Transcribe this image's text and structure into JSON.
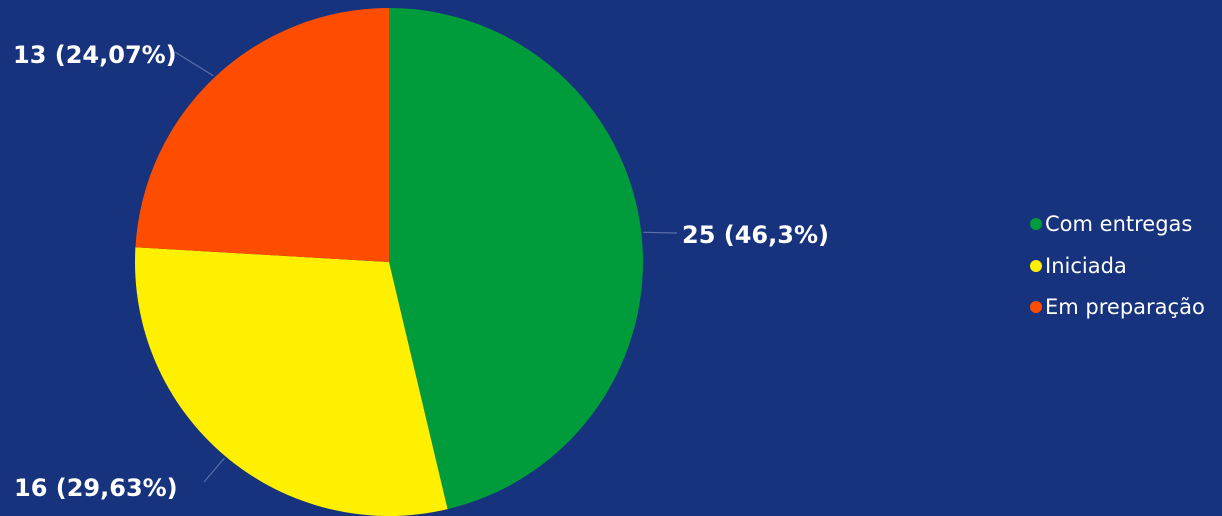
{
  "chart_data": {
    "type": "pie",
    "title": "",
    "legend_position": "right",
    "background_color": "#17337e",
    "slices": [
      {
        "name": "Com entregas",
        "value": 25,
        "percent": 46.3,
        "label": "25 (46,3%)",
        "color": "#009c3b"
      },
      {
        "name": "Iniciada",
        "value": 16,
        "percent": 29.63,
        "label": "16 (29,63%)",
        "color": "#fff000"
      },
      {
        "name": "Em preparação",
        "value": 13,
        "percent": 24.07,
        "label": "13 (24,07%)",
        "color": "#ff4d00"
      }
    ]
  }
}
